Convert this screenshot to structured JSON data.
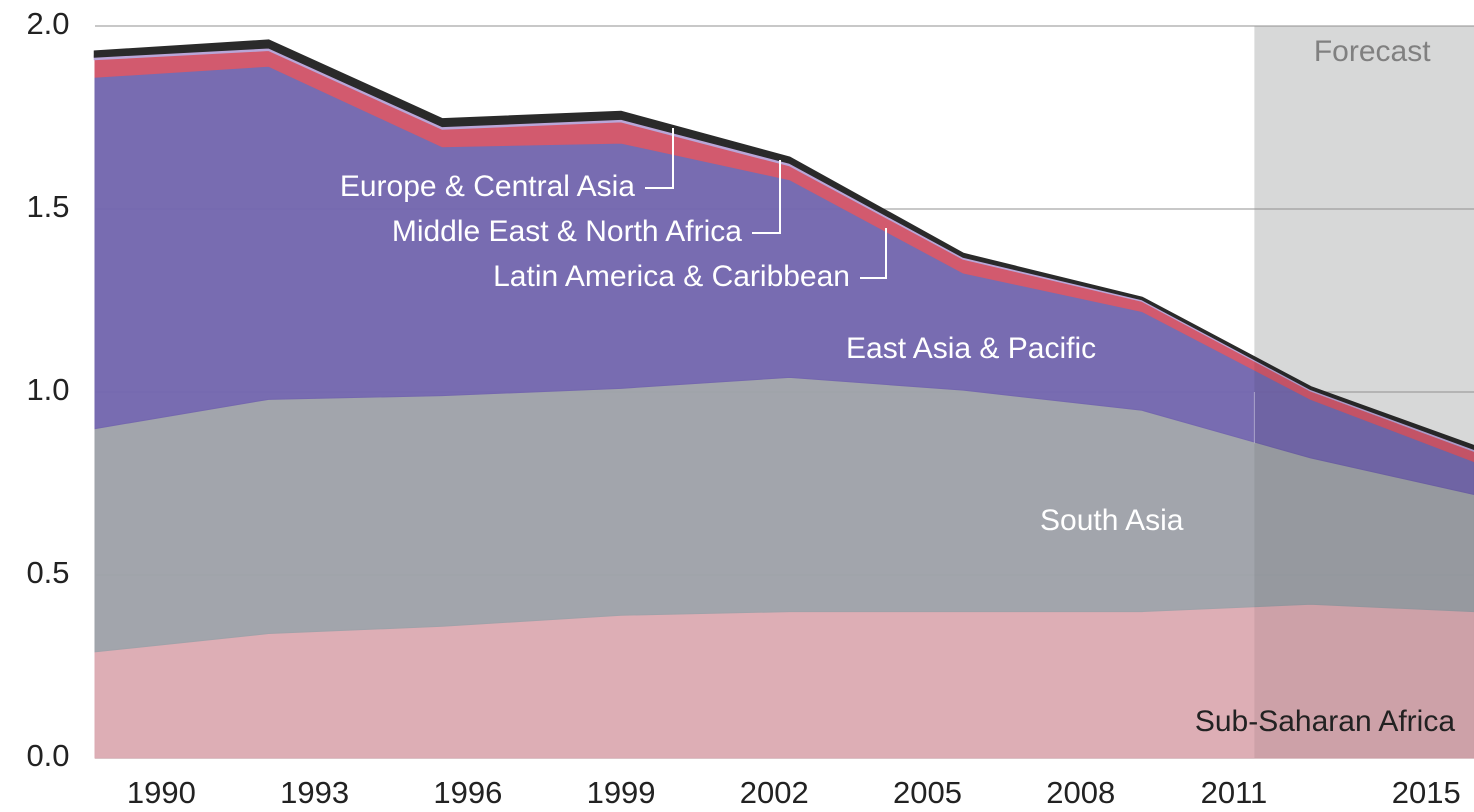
{
  "chart_data": {
    "type": "stacked_area",
    "x": [
      1988.7,
      1992.1,
      1995.5,
      1999,
      2002.3,
      2005.7,
      2009.2,
      2012.5,
      2015.7
    ],
    "series": [
      {
        "name": "Sub-Saharan Africa",
        "color": "#dcabb3",
        "values": [
          0.29,
          0.34,
          0.36,
          0.39,
          0.4,
          0.4,
          0.4,
          0.42,
          0.4
        ]
      },
      {
        "name": "South Asia",
        "color": "#9fa2a9",
        "values": [
          0.61,
          0.64,
          0.63,
          0.62,
          0.64,
          0.605,
          0.55,
          0.4,
          0.32
        ]
      },
      {
        "name": "East Asia & Pacific",
        "color": "#7467ae",
        "values": [
          0.96,
          0.91,
          0.68,
          0.67,
          0.54,
          0.32,
          0.27,
          0.16,
          0.09
        ]
      },
      {
        "name": "Latin America & Caribbean",
        "color": "#d25a6e",
        "values": [
          0.05,
          0.045,
          0.05,
          0.06,
          0.04,
          0.04,
          0.03,
          0.025,
          0.03
        ]
      },
      {
        "name": "Middle East & North Africa",
        "color": "#b9a6d8",
        "values": [
          0.007,
          0.007,
          0.007,
          0.007,
          0.007,
          0.005,
          0.004,
          0.004,
          0.005
        ]
      },
      {
        "name": "Europe & Central Asia",
        "color": "#2a2a2a",
        "values": [
          0.013,
          0.018,
          0.018,
          0.018,
          0.013,
          0.007,
          0.003,
          0.004,
          0.007
        ]
      }
    ],
    "xlim": [
      1988.7,
      2015.7
    ],
    "xticks": [
      1990,
      1993,
      1996,
      1999,
      2002,
      2005,
      2008,
      2011,
      2015
    ],
    "ylim": [
      0,
      2
    ],
    "yticks": [
      {
        "value": 0,
        "label": "0.0"
      },
      0.5,
      {
        "value": 1,
        "label": "1.0"
      },
      1.5,
      {
        "value": 2,
        "label": "2.0"
      }
    ],
    "grid": true,
    "forecast_region": [
      2011.4,
      2015.7
    ],
    "forecast_label": "Forecast"
  }
}
